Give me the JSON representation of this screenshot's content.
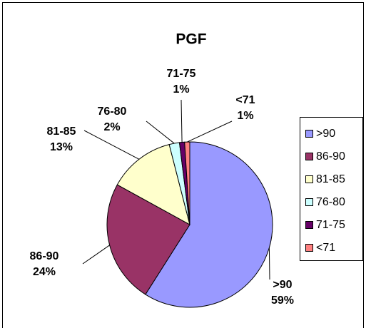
{
  "chart_data": {
    "type": "pie",
    "title": "PGF",
    "categories": [
      ">90",
      "86-90",
      "81-85",
      "76-80",
      "71-75",
      "<71"
    ],
    "values": [
      59,
      24,
      13,
      2,
      1,
      1
    ],
    "value_labels": [
      "59%",
      "24%",
      "13%",
      "2%",
      "1%",
      "1%"
    ],
    "colors": [
      "#9999ff",
      "#993366",
      "#ffffcc",
      "#ccffff",
      "#660066",
      "#ff8080"
    ],
    "legend": "right"
  }
}
